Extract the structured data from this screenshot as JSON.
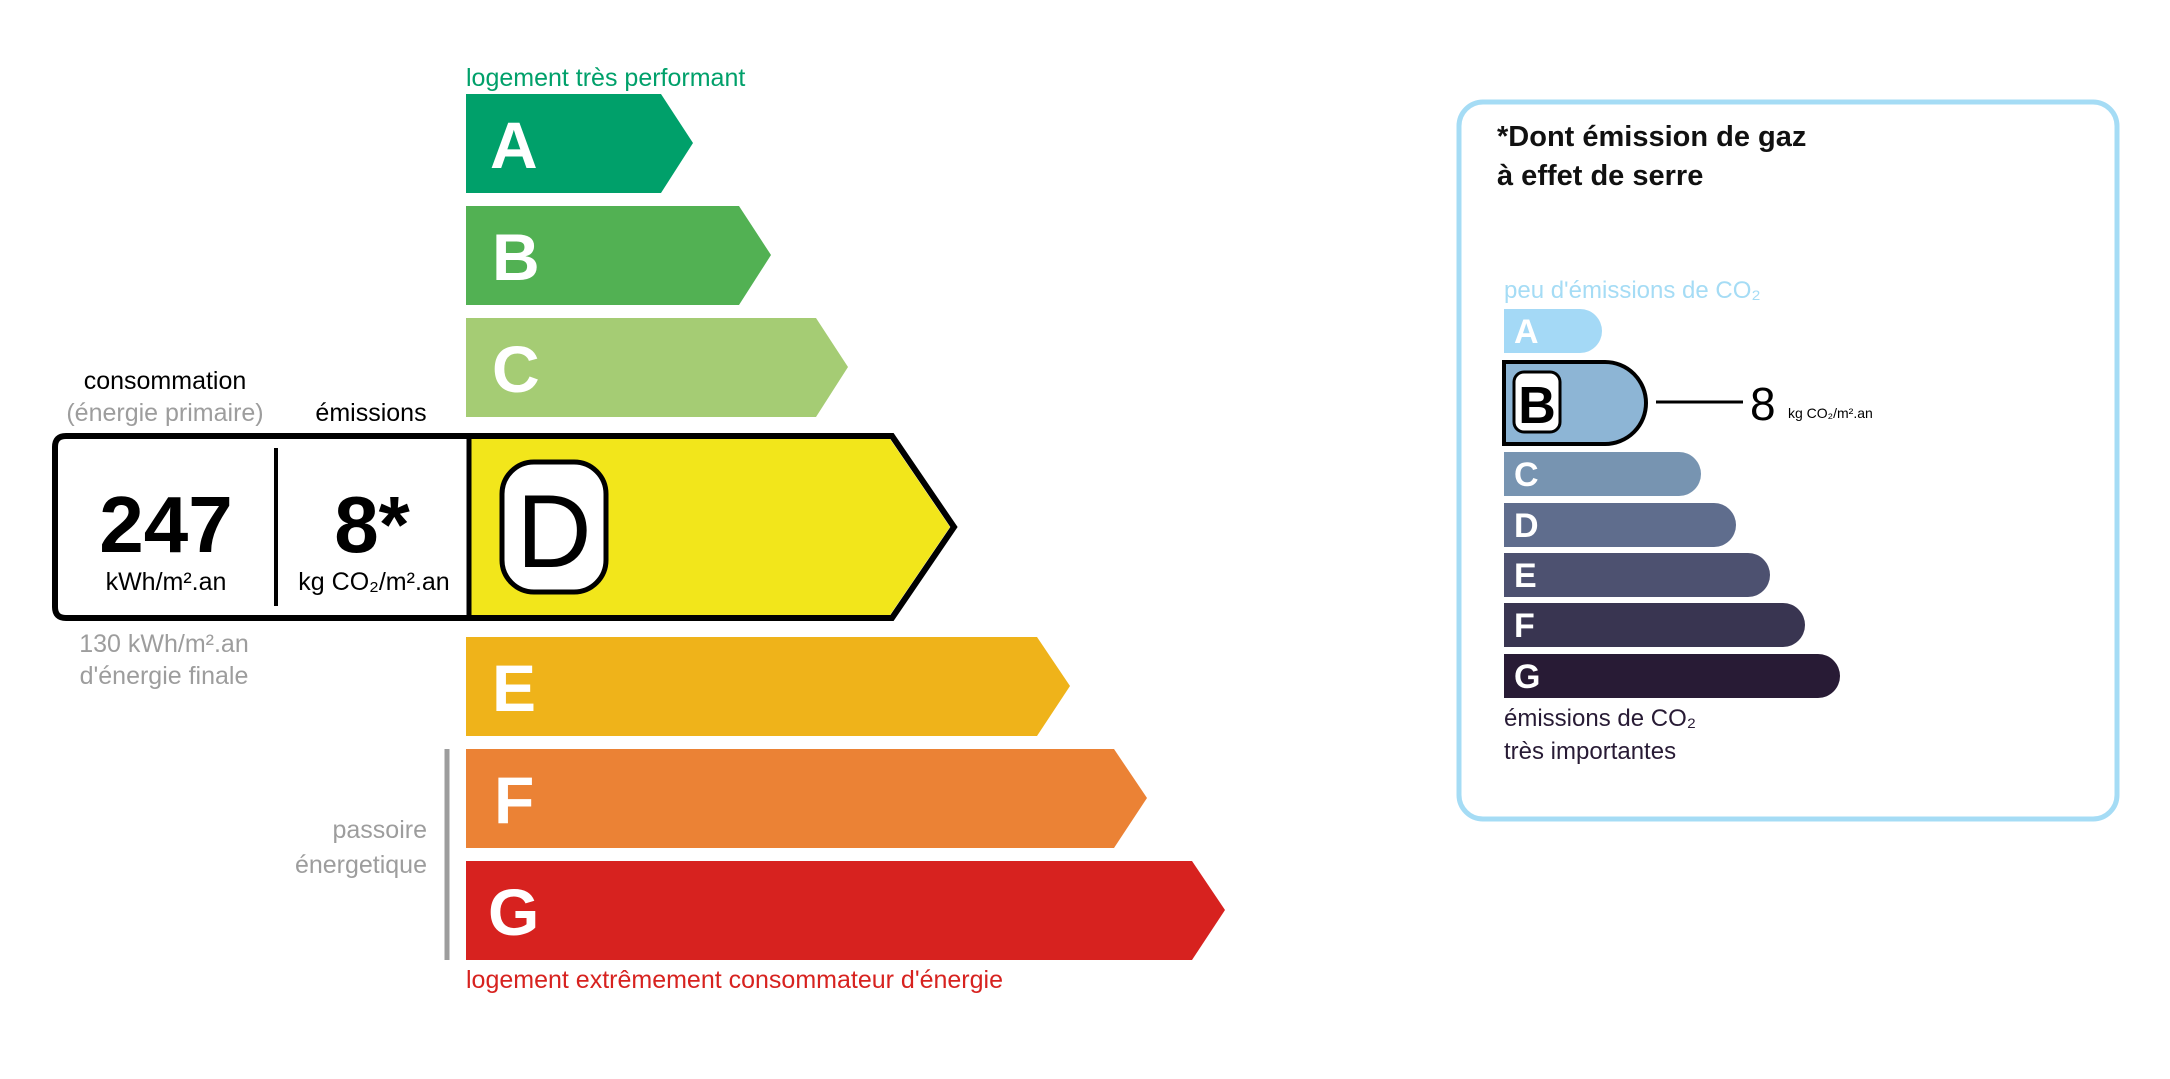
{
  "energy_label": {
    "top_caption": "logement très performant",
    "bottom_caption": "logement extrêmement consommateur d'énergie",
    "passoire_label": [
      "passoire",
      "énergetique"
    ],
    "classes": [
      {
        "letter": "A",
        "color": "#00a06a"
      },
      {
        "letter": "B",
        "color": "#52b153"
      },
      {
        "letter": "C",
        "color": "#a5cc74"
      },
      {
        "letter": "D",
        "color": "#f2e61b"
      },
      {
        "letter": "E",
        "color": "#efb31a"
      },
      {
        "letter": "F",
        "color": "#eb8235"
      },
      {
        "letter": "G",
        "color": "#d7221f"
      }
    ],
    "current_class": "D",
    "consumption_header": "consommation",
    "consumption_subheader": "(énergie primaire)",
    "emissions_header": "émissions",
    "consumption_value": "247",
    "consumption_unit": "kWh/m².an",
    "emissions_value": "8*",
    "emissions_unit": "kg CO₂/m².an",
    "final_energy_value": "130 kWh/m².an",
    "final_energy_label": "d'énergie finale",
    "top_caption_color": "#00a06a",
    "bottom_caption_color": "#d7221f"
  },
  "ghg_panel": {
    "title_line1": "*Dont émission de gaz",
    "title_line2": "à effet de serre",
    "top_caption": "peu d'émissions de CO₂",
    "bottom_caption_line1": "émissions de CO₂",
    "bottom_caption_line2": "très importantes",
    "classes": [
      {
        "letter": "A",
        "color": "#a4d9f6"
      },
      {
        "letter": "B",
        "color": "#8db5d5"
      },
      {
        "letter": "C",
        "color": "#7794b1"
      },
      {
        "letter": "D",
        "color": "#5f6d8d"
      },
      {
        "letter": "E",
        "color": "#4d5170"
      },
      {
        "letter": "F",
        "color": "#393551"
      },
      {
        "letter": "G",
        "color": "#281b35"
      }
    ],
    "current_class": "B",
    "value": "8",
    "unit": "kg CO₂/m².an",
    "border_color": "#a5dcf5"
  }
}
